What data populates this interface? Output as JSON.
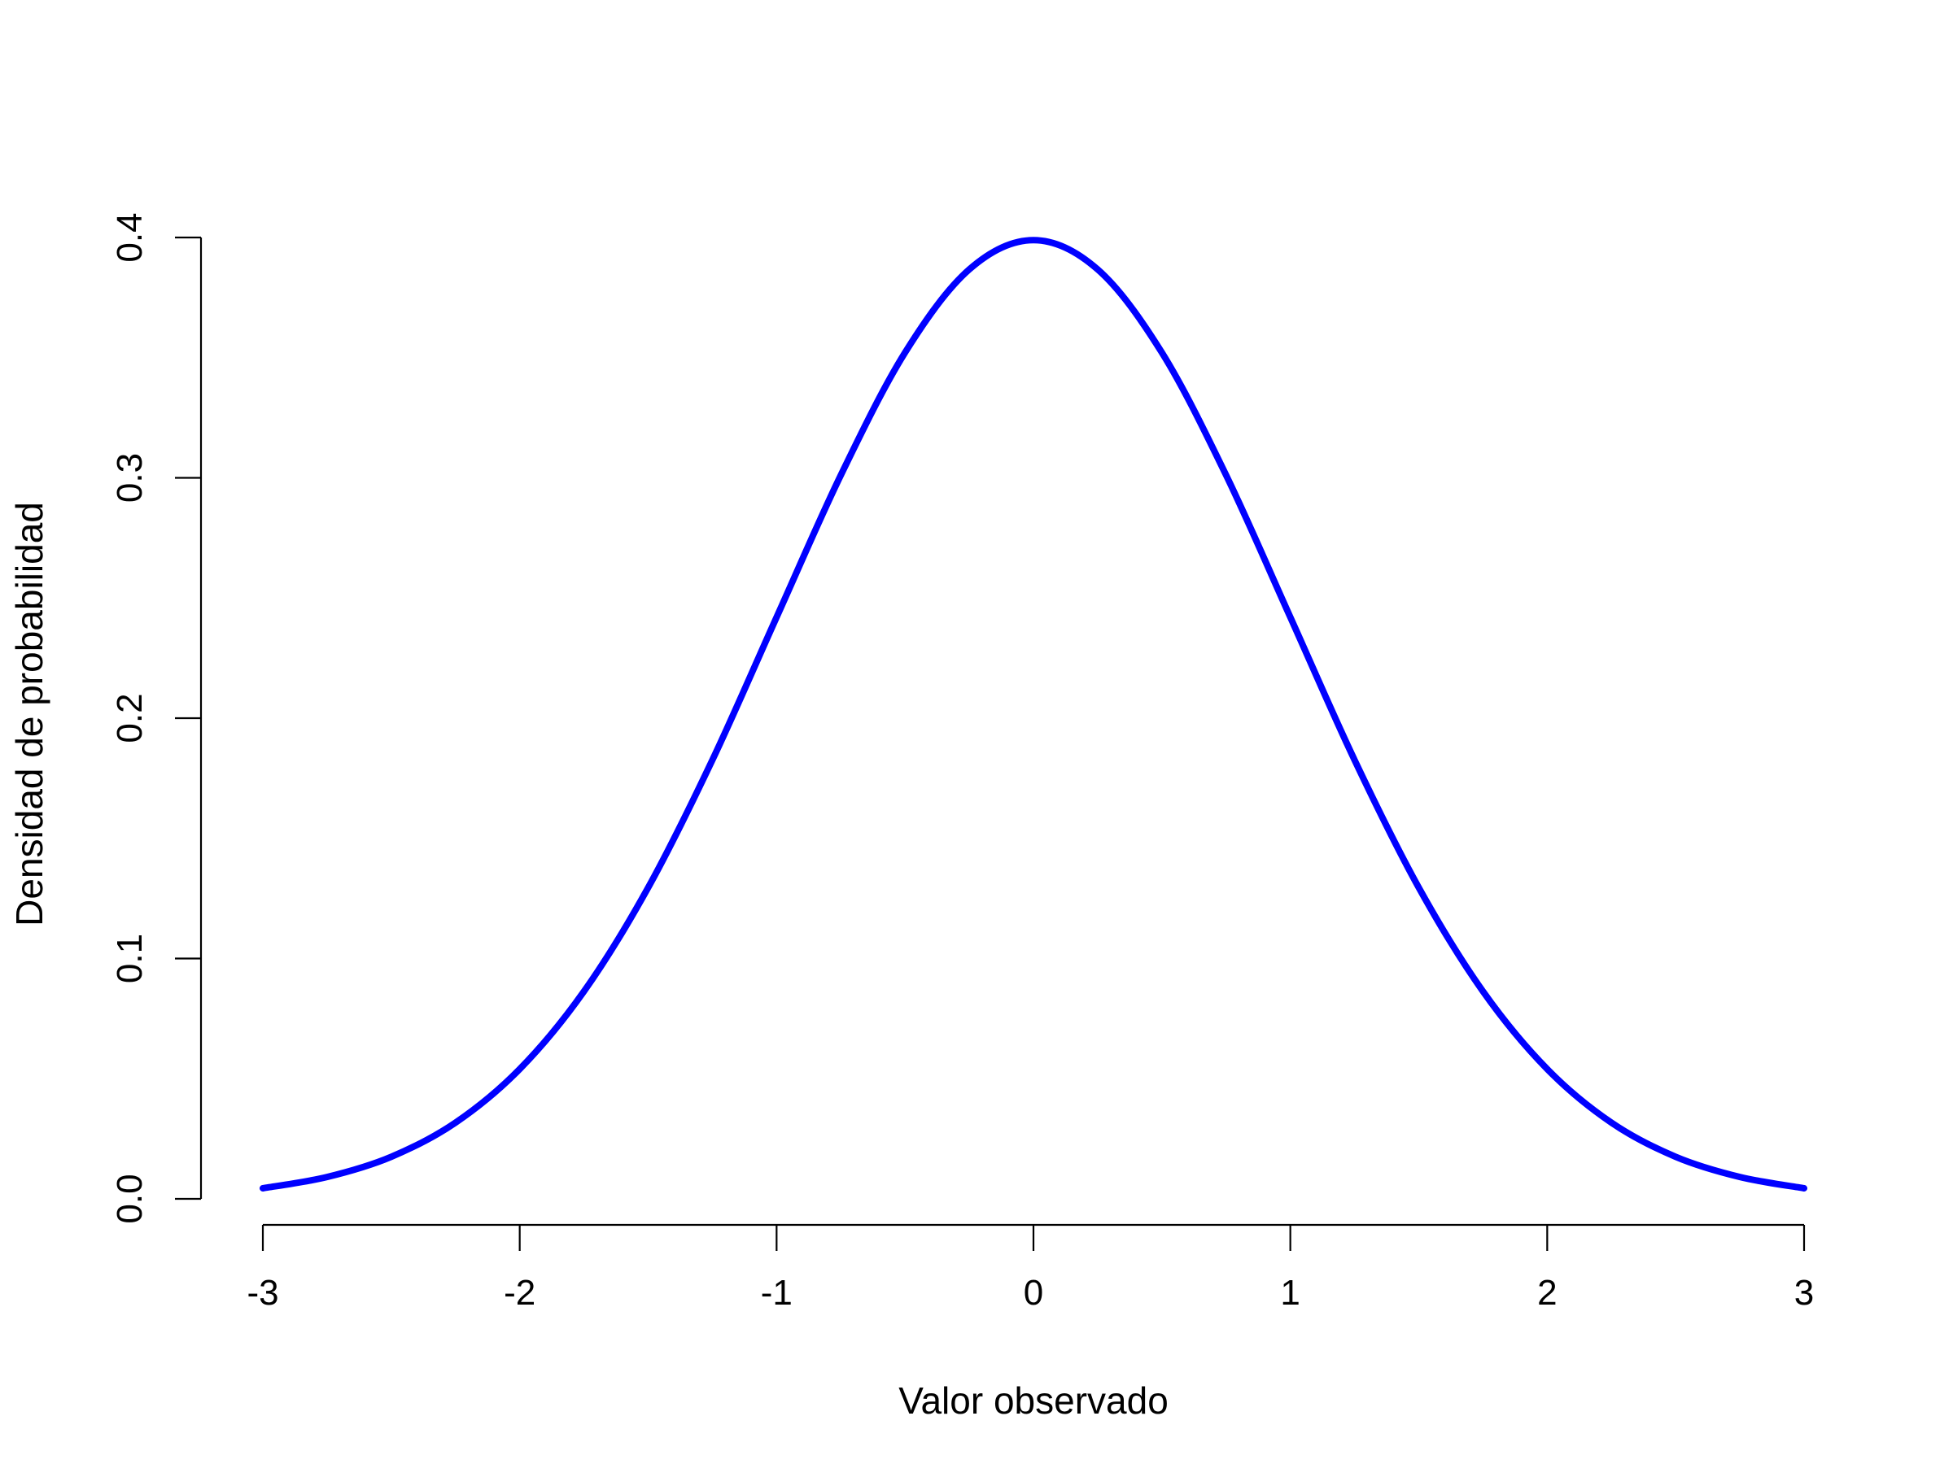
{
  "chart_data": {
    "type": "line",
    "title": "",
    "xlabel": "Valor observado",
    "ylabel": "Densidad de probabilidad",
    "xlim": [
      -3,
      3
    ],
    "ylim": [
      0,
      0.4
    ],
    "x_ticks": [
      -3,
      -2,
      -1,
      0,
      1,
      2,
      3
    ],
    "x_tick_labels": [
      "-3",
      "-2",
      "-1",
      "0",
      "1",
      "2",
      "3"
    ],
    "y_ticks": [
      0,
      0.1,
      0.2,
      0.3,
      0.4
    ],
    "y_tick_labels": [
      "0.0",
      "0.1",
      "0.2",
      "0.3",
      "0.4"
    ],
    "grid": false,
    "legend": "none",
    "series": [
      {
        "color": "#0000ff",
        "x": [
          -3,
          -2.75,
          -2.5,
          -2.25,
          -2,
          -1.75,
          -1.5,
          -1.25,
          -1,
          -0.75,
          -0.5,
          -0.25,
          0,
          0.25,
          0.5,
          0.75,
          1,
          1.25,
          1.5,
          1.75,
          2,
          2.25,
          2.5,
          2.75,
          3
        ],
        "y": [
          0.0044,
          0.0091,
          0.0175,
          0.0317,
          0.054,
          0.0863,
          0.1295,
          0.1826,
          0.242,
          0.3011,
          0.3521,
          0.3867,
          0.3989,
          0.3867,
          0.3521,
          0.3011,
          0.242,
          0.1826,
          0.1295,
          0.0863,
          0.054,
          0.0317,
          0.0175,
          0.0091,
          0.0044
        ]
      }
    ]
  }
}
